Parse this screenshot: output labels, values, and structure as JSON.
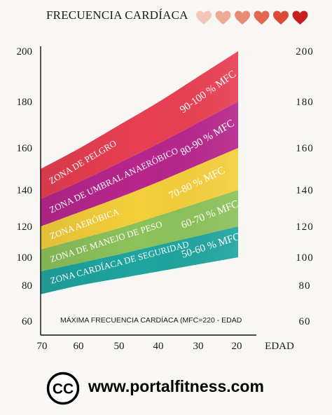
{
  "title": "FRECUENCIA CARDÍACA",
  "hearts": {
    "icon": "heart-icon",
    "colors": [
      "#f3c6b8",
      "#eeaa96",
      "#e98a75",
      "#e2674f",
      "#db4a35",
      "#c8201c"
    ]
  },
  "formula": "MÁXIMA FRECUENCIA CARDÍACA (MFC=220 - EDAD",
  "footer": {
    "logo": "cc-logo-icon",
    "logo_text": "CC",
    "website": "www.portalfitness.com"
  },
  "chart_data": {
    "type": "area",
    "xlabel": "EDAD",
    "x_ticks": [
      "70",
      "60",
      "50",
      "40",
      "30",
      "20"
    ],
    "x": [
      70,
      60,
      50,
      40,
      30,
      20
    ],
    "y_ticks": [
      "200",
      "180",
      "160",
      "140",
      "120",
      "100",
      "80",
      "60"
    ],
    "y_ticks_right": [
      "200",
      "180",
      "160",
      "140",
      "120",
      "100",
      "80",
      "60"
    ],
    "xlim": [
      70,
      20
    ],
    "ylim": [
      60,
      200
    ],
    "series": [
      {
        "name": "ZONA CARDÍACA DE SEGURIDAD",
        "label": "50-60 % MFC",
        "color": "#1fa5a0",
        "lower": [
          75,
          80,
          85,
          90,
          95,
          100
        ],
        "upper": [
          90,
          96,
          102,
          108,
          114,
          120
        ]
      },
      {
        "name": "ZONA DE MANEJO DE PESO",
        "label": "60-70 % MFC",
        "color": "#8cc25a",
        "lower": [
          90,
          96,
          102,
          108,
          114,
          120
        ],
        "upper": [
          105,
          112,
          119,
          126,
          133,
          140
        ]
      },
      {
        "name": "ZONA AERÓBICA",
        "label": "70-80 % MFC",
        "color": "#f4cf3b",
        "lower": [
          105,
          112,
          119,
          126,
          133,
          140
        ],
        "upper": [
          120,
          128,
          136,
          144,
          152,
          160
        ]
      },
      {
        "name": "ZONA DE UMBRAL ANAERÓBICO",
        "label": "80-90 % MFC",
        "color": "#b7268d",
        "lower": [
          120,
          128,
          136,
          144,
          152,
          160
        ],
        "upper": [
          135,
          144,
          153,
          162,
          171,
          180
        ]
      },
      {
        "name": "ZONA DE PELGRO",
        "label": "90-100 % MFC",
        "color": "#e83f52",
        "lower": [
          135,
          144,
          153,
          162,
          171,
          180
        ],
        "upper": [
          150,
          160,
          170,
          180,
          190,
          200
        ]
      }
    ]
  }
}
